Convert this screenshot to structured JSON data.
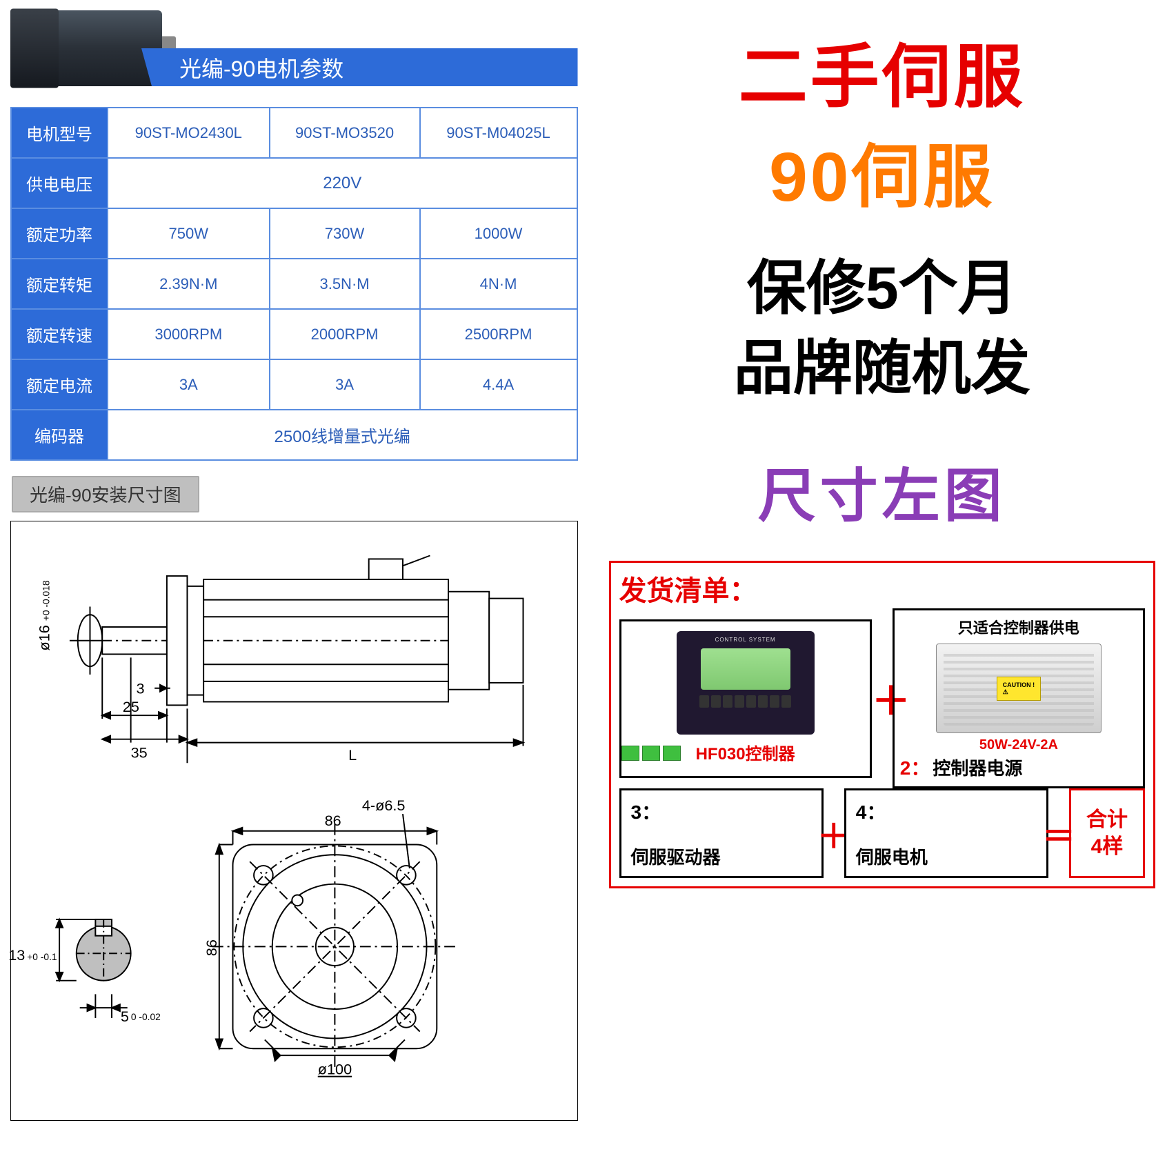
{
  "banner_title": "光编-90电机参数",
  "spec": {
    "rows": [
      {
        "label": "电机型号",
        "cells": [
          "90ST-MO2430L",
          "90ST-MO3520",
          "90ST-M04025L"
        ]
      },
      {
        "label": "供电电压",
        "span": "220V"
      },
      {
        "label": "额定功率",
        "cells": [
          "750W",
          "730W",
          "1000W"
        ]
      },
      {
        "label": "额定转矩",
        "cells": [
          "2.39N·M",
          "3.5N·M",
          "4N·M"
        ]
      },
      {
        "label": "额定转速",
        "cells": [
          "3000RPM",
          "2000RPM",
          "2500RPM"
        ]
      },
      {
        "label": "额定电流",
        "cells": [
          "3A",
          "3A",
          "4.4A"
        ]
      },
      {
        "label": "编码器",
        "span": "2500线增量式光编"
      }
    ],
    "colors": {
      "header_bg": "#2d6bd8",
      "border": "#5a8de0",
      "text": "#2b5db8",
      "header_text": "#ffffff"
    }
  },
  "dim_label": "光编-90安装尺寸图",
  "drawing": {
    "side": {
      "shaft_dia": "ø16",
      "shaft_tol": "+0 -0.018",
      "d3": "3",
      "d25": "25",
      "d35": "35",
      "L": "L"
    },
    "front": {
      "sq": "86",
      "sq2": "86",
      "holes": "4-ø6.5",
      "pcd": "ø100"
    },
    "key": {
      "h": "13",
      "h_tol": "+0 -0.1",
      "w": "5",
      "w_tol": "0 -0.02"
    }
  },
  "right": {
    "line1": "二手伺服",
    "line2": "90伺服",
    "line3": "保修5个月",
    "line4": "品牌随机发",
    "line5": "尺寸左图"
  },
  "ship": {
    "title": "发货清单：",
    "item1": {
      "label": "HF030控制器"
    },
    "item2": {
      "note": "只适合控制器供电",
      "spec": "50W-24V-2A",
      "num": "2：",
      "label": "控制器电源"
    },
    "item3": {
      "num": "3：",
      "label": "伺服驱动器"
    },
    "item4": {
      "num": "4：",
      "label": "伺服电机"
    },
    "plus": "＋",
    "eq": "＝",
    "total": {
      "l1": "合计",
      "l2": "4样"
    }
  },
  "colors": {
    "red": "#e60000",
    "orange": "#ff7a00",
    "purple": "#8a3db6",
    "black": "#000000"
  }
}
